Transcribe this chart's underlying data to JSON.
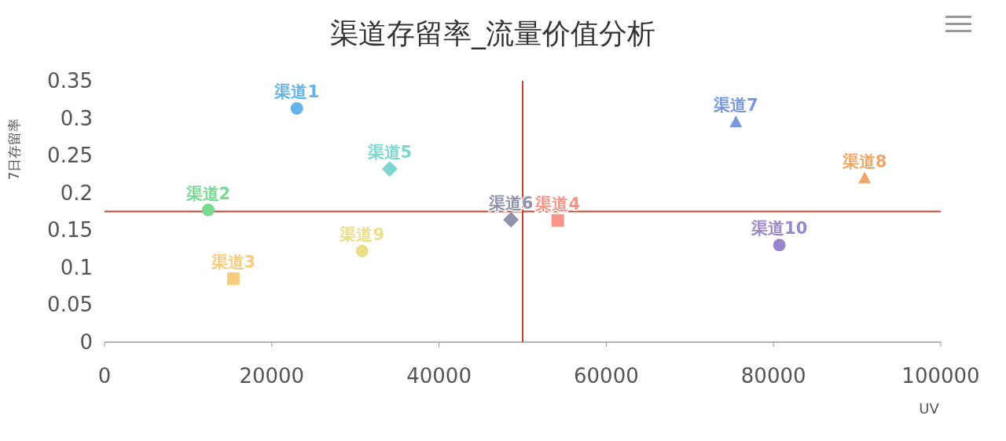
{
  "chart_data": {
    "type": "scatter",
    "title": "渠道存留率_流量价值分析",
    "xlabel": "UV",
    "ylabel": "7日存留率",
    "xlim": [
      0,
      100000
    ],
    "xticks": [
      0,
      20000,
      40000,
      60000,
      80000,
      100000
    ],
    "ylim": [
      0,
      0.35
    ],
    "yticks": [
      0,
      0.05,
      0.1,
      0.15,
      0.2,
      0.25,
      0.3,
      0.35
    ],
    "grid": false,
    "series": [
      {
        "name": "渠道1",
        "color": "#63b2ee",
        "marker": "circle",
        "x": [
          23000
        ],
        "values": [
          0.313
        ]
      },
      {
        "name": "渠道2",
        "color": "#76da91",
        "marker": "circle",
        "x": [
          12400
        ],
        "values": [
          0.177
        ]
      },
      {
        "name": "渠道3",
        "color": "#f8cb7f",
        "marker": "square",
        "x": [
          15400
        ],
        "values": [
          0.085
        ]
      },
      {
        "name": "渠道4",
        "color": "#f89588",
        "marker": "square",
        "x": [
          54200
        ],
        "values": [
          0.163
        ]
      },
      {
        "name": "渠道5",
        "color": "#7cd6cf",
        "marker": "diamond",
        "x": [
          34100
        ],
        "values": [
          0.232
        ]
      },
      {
        "name": "渠道6",
        "color": "#9192ab",
        "marker": "diamond",
        "x": [
          48600
        ],
        "values": [
          0.164
        ]
      },
      {
        "name": "渠道7",
        "color": "#7898e1",
        "marker": "triangle",
        "x": [
          75500
        ],
        "values": [
          0.295
        ]
      },
      {
        "name": "渠道8",
        "color": "#efa666",
        "marker": "triangle",
        "x": [
          90900
        ],
        "values": [
          0.22
        ]
      },
      {
        "name": "渠道9",
        "color": "#eddd86",
        "marker": "circle",
        "x": [
          30800
        ],
        "values": [
          0.122
        ]
      },
      {
        "name": "渠道10",
        "color": "#9987ce",
        "marker": "circle",
        "x": [
          80700
        ],
        "values": [
          0.13
        ]
      }
    ],
    "ref_lines": [
      {
        "axis": "x",
        "value": 50000,
        "color": "#d23c2a"
      },
      {
        "axis": "y",
        "value": 0.175,
        "color": "#d23c2a"
      }
    ]
  }
}
